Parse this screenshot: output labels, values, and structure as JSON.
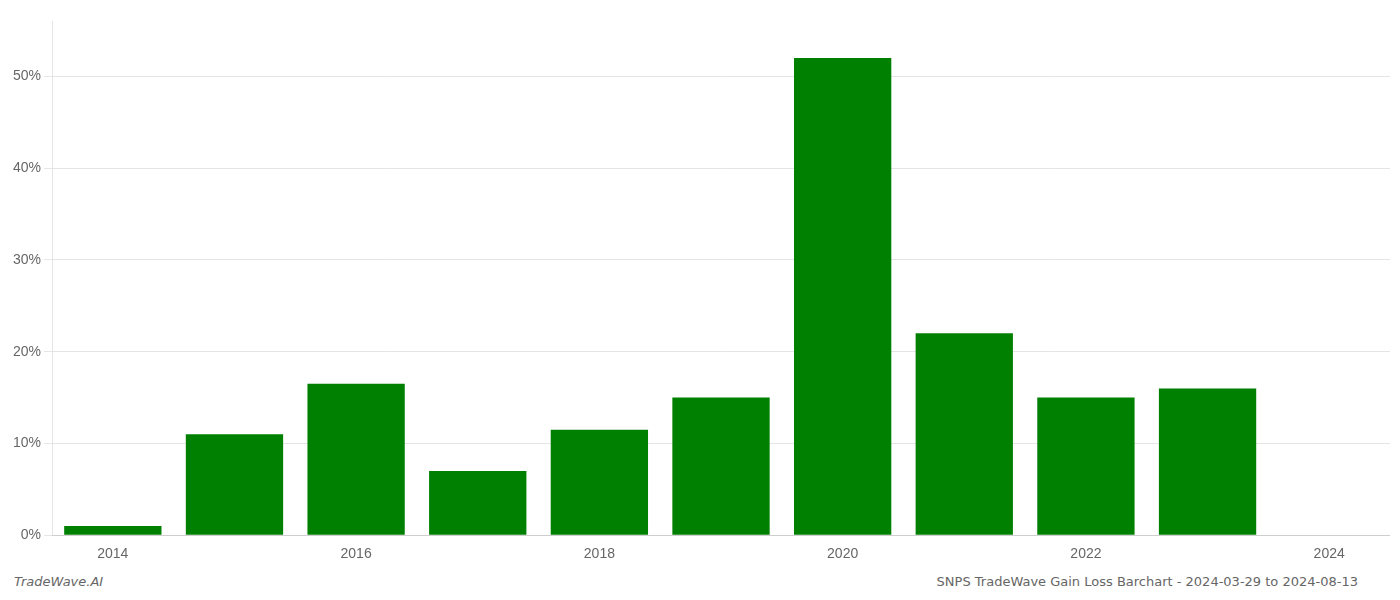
{
  "chart_data": {
    "type": "bar",
    "x": [
      2014,
      2015,
      2016,
      2017,
      2018,
      2019,
      2020,
      2021,
      2022,
      2023
    ],
    "values": [
      1.0,
      11.0,
      16.5,
      7.0,
      11.5,
      15.0,
      52.0,
      22.0,
      15.0,
      16.0
    ],
    "color": "#008000",
    "xlim": [
      2013.5,
      2024.5
    ],
    "xticks": [
      2014,
      2016,
      2018,
      2020,
      2022,
      2024
    ],
    "ylim": [
      0,
      56
    ],
    "yticks": [
      {
        "value": 0,
        "label": "0%"
      },
      {
        "value": 10,
        "label": "10%"
      },
      {
        "value": 20,
        "label": "20%"
      },
      {
        "value": 30,
        "label": "30%"
      },
      {
        "value": 40,
        "label": "40%"
      },
      {
        "value": 50,
        "label": "50%"
      }
    ],
    "grid": "y",
    "annotations": [
      "TradeWave.AI",
      "SNPS TradeWave Gain Loss Barchart - 2024-03-29 to 2024-08-13"
    ]
  }
}
